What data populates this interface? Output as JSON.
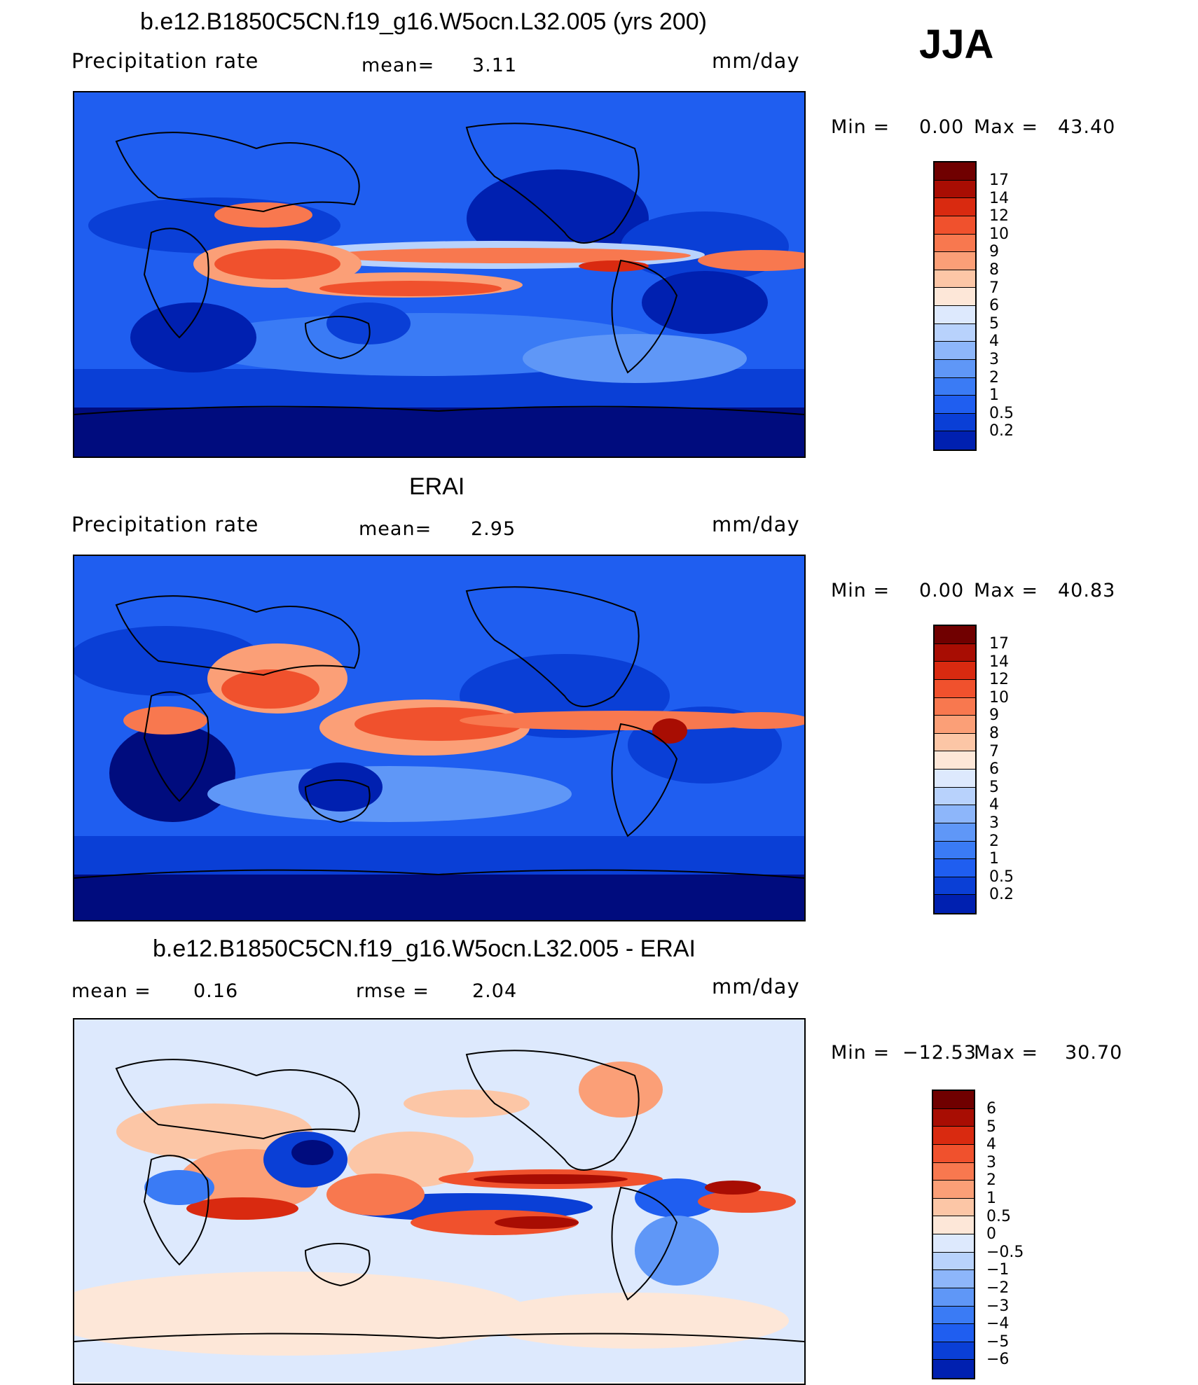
{
  "season": "JJA",
  "colors": {
    "abs_scale": [
      "#000c7e",
      "#0020b0",
      "#0a3fd6",
      "#1f5ef0",
      "#3a7bf5",
      "#5f97f7",
      "#8db6fa",
      "#b8d2fc",
      "#dde9fd",
      "#fde7d8",
      "#fcc6a6",
      "#fb9f77",
      "#f8784f",
      "#f0512d",
      "#d92a10",
      "#a80d03",
      "#700000"
    ],
    "diff_scale": [
      "#000c7e",
      "#0020b0",
      "#0a3fd6",
      "#1f5ef0",
      "#3a7bf5",
      "#5f97f7",
      "#8db6fa",
      "#b8d2fc",
      "#dde9fd",
      "#fde7d8",
      "#fcc6a6",
      "#fb9f77",
      "#f8784f",
      "#f0512d",
      "#d92a10",
      "#a80d03",
      "#700000"
    ]
  },
  "panel1": {
    "title": "b.e12.B1850C5CN.f19_g16.W5ocn.L32.005 (yrs 200)",
    "variable": "Precipitation  rate",
    "mean_label": "mean=",
    "mean_value": "3.11",
    "units": "mm/day",
    "min_label": "Min  =",
    "min_value": "0.00",
    "max_label": "Max  =",
    "max_value": "43.40",
    "colorbar_labels": [
      "17",
      "14",
      "12",
      "10",
      "9",
      "8",
      "7",
      "6",
      "5",
      "4",
      "3",
      "2",
      "1",
      "0.5",
      "0.2"
    ]
  },
  "panel2": {
    "title": "ERAI",
    "variable": "Precipitation  rate",
    "mean_label": "mean=",
    "mean_value": "2.95",
    "units": "mm/day",
    "min_label": "Min  =",
    "min_value": "0.00",
    "max_label": "Max  =",
    "max_value": "40.83",
    "colorbar_labels": [
      "17",
      "14",
      "12",
      "10",
      "9",
      "8",
      "7",
      "6",
      "5",
      "4",
      "3",
      "2",
      "1",
      "0.5",
      "0.2"
    ]
  },
  "panel3": {
    "title": "b.e12.B1850C5CN.f19_g16.W5ocn.L32.005 - ERAI",
    "mean_label": "mean  =",
    "mean_value": "0.16",
    "rmse_label": "rmse  =",
    "rmse_value": "2.04",
    "units": "mm/day",
    "min_label": "Min  =",
    "min_value": "−12.53",
    "max_label": "Max  =",
    "max_value": "30.70",
    "colorbar_labels": [
      "6",
      "5",
      "4",
      "3",
      "2",
      "1",
      "0.5",
      "0",
      "−0.5",
      "−1",
      "−2",
      "−3",
      "−4",
      "−5",
      "−6"
    ]
  }
}
